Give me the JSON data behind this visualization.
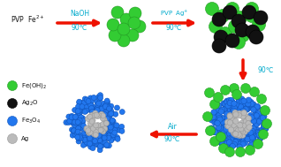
{
  "background_color": "#ffffff",
  "arrow_color": "#ee1100",
  "text_color_cyan": "#00aacc",
  "text_color_black": "#111111",
  "feoh2_color": "#33cc33",
  "feoh2_edge": "#229922",
  "ag2o_color": "#111111",
  "ag2o_edge": "#000000",
  "fe3o4_color": "#2277ee",
  "fe3o4_edge": "#1155bb",
  "ag_color": "#bbbbbb",
  "ag_edge": "#999999",
  "legend_items": [
    {
      "label": "Fe(OH)$_2$",
      "color": "#33cc33",
      "edge": "#229922"
    },
    {
      "label": "Ag$_2$O",
      "color": "#111111",
      "edge": "#000000"
    },
    {
      "label": "Fe$_3$O$_4$",
      "color": "#2277ee",
      "edge": "#1155bb"
    },
    {
      "label": "Ag",
      "color": "#bbbbbb",
      "edge": "#999999"
    }
  ]
}
